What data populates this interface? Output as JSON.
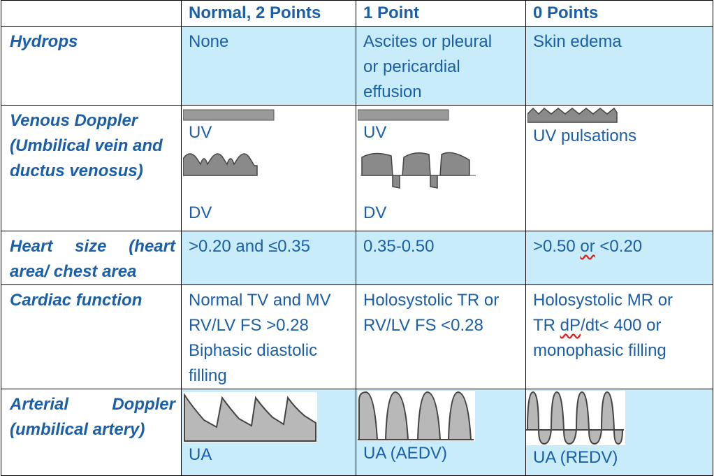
{
  "header": {
    "col0": "",
    "col1": "Normal, 2 Points",
    "col2": "1 Point",
    "col3": "0 Points"
  },
  "rows": [
    {
      "label": "Hydrops",
      "c1": "None",
      "c2_lines": [
        "Ascites or pleural",
        "or pericardial",
        "effusion"
      ],
      "c3": "Skin edema"
    },
    {
      "label_lines": [
        "Venous Doppler",
        "(Umbilical vein and",
        "ductus venosus)"
      ],
      "c1_uv": "UV",
      "c1_dv": "DV",
      "c2_uv": "UV",
      "c2_dv": "DV",
      "c3": "UV pulsations"
    },
    {
      "label_lines": [
        "Heart size (heart",
        "area/ chest area"
      ],
      "c1": ">0.20 and ≤0.35",
      "c2": "0.35-0.50",
      "c3_pre": ">0.50 ",
      "c3_or": "or",
      "c3_post": " <0.20"
    },
    {
      "label": "Cardiac function",
      "c1_lines": [
        "Normal TV and MV",
        "RV/LV FS >0.28",
        "Biphasic diastolic",
        "filling"
      ],
      "c2_lines": [
        "Holosystolic TR or",
        "RV/LV FS <0.28"
      ],
      "c3_line1": "Holosystolic MR or",
      "c3_line2_pre": "TR ",
      "c3_line2_dp": "dP",
      "c3_line2_post": "/dt< 400 or",
      "c3_line3": "monophasic filling"
    },
    {
      "label_lines": [
        "Arterial Doppler",
        "(umbilical artery)"
      ],
      "c1": "UA",
      "c2": "UA (AEDV)",
      "c3": "UA (REDV)"
    }
  ],
  "colors": {
    "text": "#1a5fa8",
    "shade": "#c8ecf9",
    "wave_fill": "#b8b8b8",
    "wave_stroke": "#444444"
  }
}
